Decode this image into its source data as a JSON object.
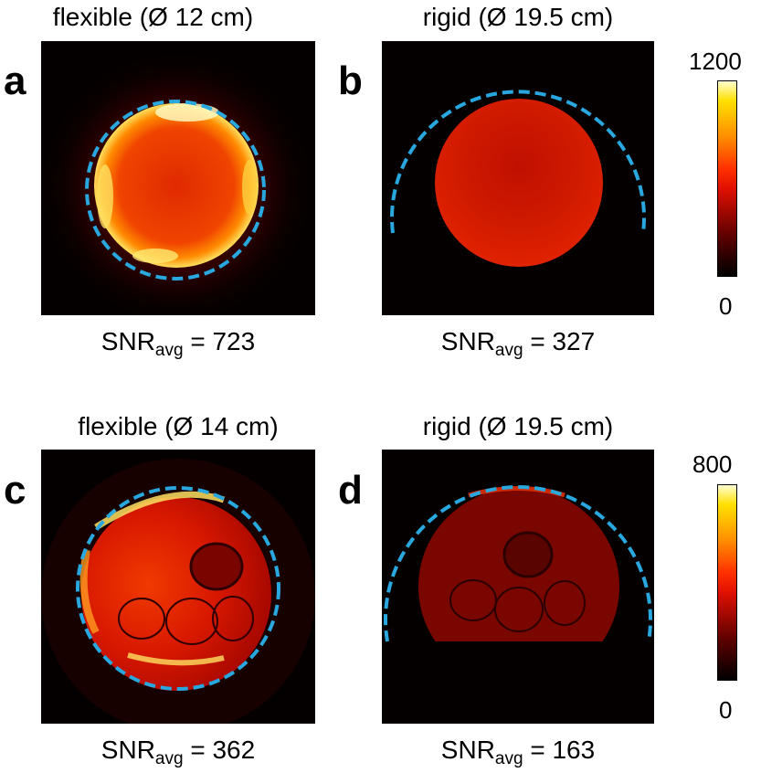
{
  "panels": [
    {
      "id": "a",
      "letter": "a",
      "title": "flexible (Ø 12 cm)",
      "snr_prefix": "SNR",
      "snr_sub": "avg",
      "snr_value": " = 723"
    },
    {
      "id": "b",
      "letter": "b",
      "title": "rigid (Ø 19.5 cm)",
      "snr_prefix": "SNR",
      "snr_sub": "avg",
      "snr_value": " = 327"
    },
    {
      "id": "c",
      "letter": "c",
      "title": "flexible (Ø 14 cm)",
      "snr_prefix": "SNR",
      "snr_sub": "avg",
      "snr_value": " = 362"
    },
    {
      "id": "d",
      "letter": "d",
      "title": "rigid (Ø 19.5 cm)",
      "snr_prefix": "SNR",
      "snr_sub": "avg",
      "snr_value": " = 163"
    }
  ],
  "colorbars": [
    {
      "max": "1200",
      "min": "0"
    },
    {
      "max": "800",
      "min": "0"
    }
  ],
  "colors": {
    "coil_outline": "#29a8e0",
    "colormap": [
      "#000000",
      "#5a0000",
      "#e01000",
      "#ff3000",
      "#ff9000",
      "#ffe000",
      "#ffffd0"
    ]
  }
}
